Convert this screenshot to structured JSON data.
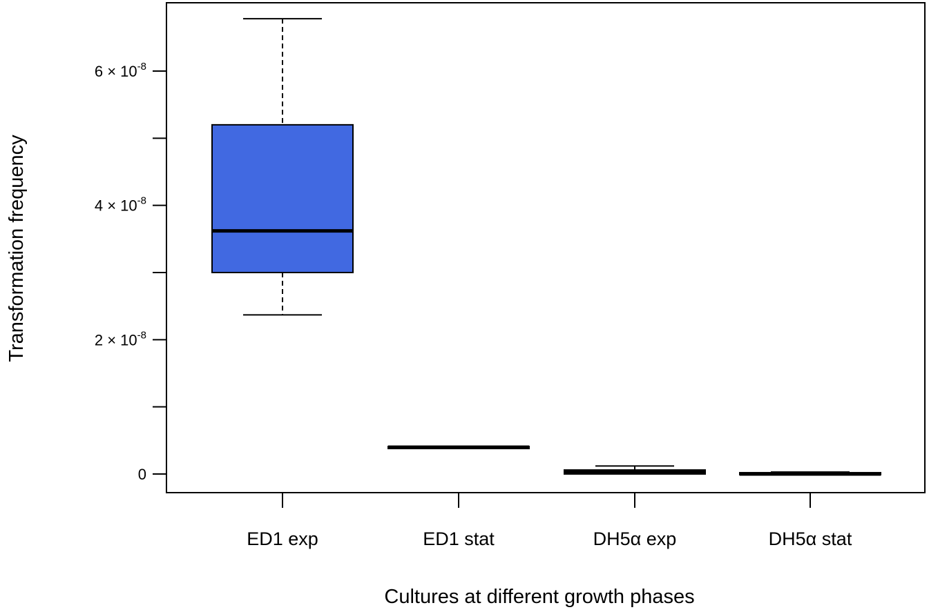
{
  "chart_data": {
    "type": "box",
    "title": "",
    "xlabel": "Cultures at different growth phases",
    "ylabel": "Transformation frequency",
    "ylim": [
      -2.5e-09,
      6.95e-08
    ],
    "y_ticks": [
      0,
      1e-08,
      2e-08,
      3e-08,
      4e-08,
      5e-08,
      6e-08
    ],
    "y_tick_labels": [
      {
        "value": 0,
        "mantissa": "0",
        "times": "",
        "base": "",
        "exp": ""
      },
      {
        "value": 2e-08,
        "mantissa": "2",
        "times": " × ",
        "base": "10",
        "exp": "-8"
      },
      {
        "value": 4e-08,
        "mantissa": "4",
        "times": " × ",
        "base": "10",
        "exp": "-8"
      },
      {
        "value": 6e-08,
        "mantissa": "6",
        "times": " × ",
        "base": "10",
        "exp": "-8"
      }
    ],
    "grid": false,
    "categories": [
      "ED1 exp",
      "ED1 stat",
      "DH5α exp",
      "DH5α stat"
    ],
    "boxes": [
      {
        "category": "ED1 exp",
        "whisker_low": 2.37e-08,
        "q1": 3e-08,
        "median": 3.62e-08,
        "q3": 5.2e-08,
        "whisker_high": 6.78e-08,
        "fill": "#4169E1"
      },
      {
        "category": "ED1 stat",
        "whisker_low": 3.8e-09,
        "q1": 3.8e-09,
        "median": 4e-09,
        "q3": 4.1e-09,
        "whisker_high": 4.1e-09,
        "fill": "#1a1a1a"
      },
      {
        "category": "DH5α exp",
        "whisker_low": 0.0,
        "q1": 0.0,
        "median": 3e-10,
        "q3": 6e-10,
        "whisker_high": 1.2e-09,
        "fill": "#d42020"
      },
      {
        "category": "DH5α stat",
        "whisker_low": 0.0,
        "q1": 0.0,
        "median": 0.0,
        "q3": 2e-10,
        "whisker_high": 3e-10,
        "fill": "#1a1a1a"
      }
    ],
    "colors": {
      "axis": "#000000",
      "box_edge": "#000000"
    }
  }
}
